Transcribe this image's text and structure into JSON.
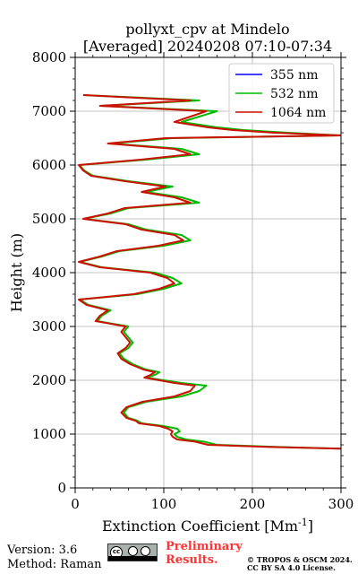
{
  "chart_data": {
    "type": "line",
    "title": "pollyxt_cpv at Mindelo",
    "subtitle": "[Averaged] 20240208 07:10-07:34",
    "xlabel": "Extinction Coefficient [Mm",
    "xlabel_sup": "-1",
    "xlabel_close": "]",
    "ylabel": "Height (m)",
    "xlim": [
      0,
      300
    ],
    "ylim": [
      0,
      8000
    ],
    "xticks": [
      "0",
      "100",
      "200",
      "300"
    ],
    "yticks": [
      "0",
      "1000",
      "2000",
      "3000",
      "4000",
      "5000",
      "6000",
      "7000",
      "8000"
    ],
    "grid": true,
    "legend_position": "top-right",
    "series": [
      {
        "name": "355 nm",
        "color": "#0000ff",
        "height": [],
        "values": []
      },
      {
        "name": "532 nm",
        "color": "#00bb00",
        "height": [
          730,
          760,
          800,
          860,
          900,
          950,
          1000,
          1050,
          1100,
          1150,
          1200,
          1250,
          1300,
          1400,
          1500,
          1600,
          1700,
          1800,
          1900,
          1950,
          2000,
          2050,
          2100,
          2150,
          2200,
          2300,
          2400,
          2500,
          2600,
          2700,
          2800,
          2900,
          3000,
          3100,
          3200,
          3300,
          3400,
          3500,
          3600,
          3700,
          3800,
          3900,
          4000,
          4100,
          4200,
          4300,
          4400,
          4500,
          4600,
          4700,
          4800,
          4900,
          5000,
          5100,
          5200,
          5300,
          5400,
          5500,
          5600,
          5700,
          5800,
          5900,
          6000,
          6100,
          6200,
          6300,
          6400,
          6500,
          6550,
          6600,
          6650,
          6700,
          6800,
          6900,
          7000,
          7100,
          7200,
          7300
        ],
        "values": [
          300,
          230,
          160,
          145,
          125,
          115,
          112,
          118,
          115,
          100,
          75,
          70,
          60,
          55,
          60,
          80,
          120,
          140,
          148,
          120,
          100,
          80,
          90,
          95,
          80,
          65,
          55,
          50,
          60,
          65,
          60,
          55,
          60,
          25,
          30,
          40,
          15,
          5,
          70,
          100,
          120,
          110,
          90,
          30,
          5,
          30,
          50,
          100,
          130,
          120,
          80,
          60,
          10,
          40,
          60,
          140,
          120,
          80,
          110,
          60,
          20,
          10,
          5,
          80,
          140,
          120,
          40,
          110,
          300,
          240,
          190,
          160,
          120,
          140,
          160,
          30,
          140,
          10
        ]
      },
      {
        "name": "1064 nm",
        "color": "#cc1100",
        "height": [
          730,
          760,
          800,
          860,
          900,
          950,
          1000,
          1050,
          1100,
          1150,
          1200,
          1250,
          1300,
          1400,
          1500,
          1600,
          1700,
          1800,
          1900,
          1950,
          2000,
          2050,
          2100,
          2150,
          2200,
          2300,
          2400,
          2500,
          2600,
          2700,
          2800,
          2900,
          3000,
          3100,
          3200,
          3300,
          3400,
          3500,
          3600,
          3700,
          3800,
          3900,
          4000,
          4100,
          4200,
          4300,
          4400,
          4500,
          4600,
          4700,
          4800,
          4900,
          5000,
          5100,
          5200,
          5300,
          5400,
          5500,
          5600,
          5700,
          5800,
          5900,
          6000,
          6100,
          6200,
          6300,
          6400,
          6500,
          6550,
          6600,
          6650,
          6700,
          6800,
          6900,
          7000,
          7100,
          7200,
          7300
        ],
        "values": [
          300,
          220,
          150,
          135,
          115,
          110,
          108,
          110,
          105,
          95,
          72,
          68,
          58,
          52,
          58,
          76,
          112,
          130,
          135,
          112,
          95,
          78,
          85,
          90,
          77,
          62,
          52,
          48,
          57,
          62,
          57,
          52,
          57,
          23,
          28,
          37,
          13,
          4,
          66,
          95,
          112,
          104,
          85,
          28,
          4,
          28,
          47,
          94,
          122,
          112,
          75,
          57,
          9,
          37,
          56,
          130,
          112,
          75,
          102,
          56,
          18,
          9,
          4,
          74,
          130,
          112,
          37,
          102,
          300,
          225,
          178,
          150,
          112,
          130,
          148,
          28,
          130,
          9
        ]
      }
    ]
  },
  "footer": {
    "version": "Version: 3.6",
    "method": "Method: Raman",
    "prelim_line1": "Preliminary",
    "prelim_line2": "Results.",
    "copyright_line1": "© TROPOS & OSCM 2024.",
    "copyright_line2": "CC BY SA 4.0 License.",
    "badge_text": "cc"
  }
}
